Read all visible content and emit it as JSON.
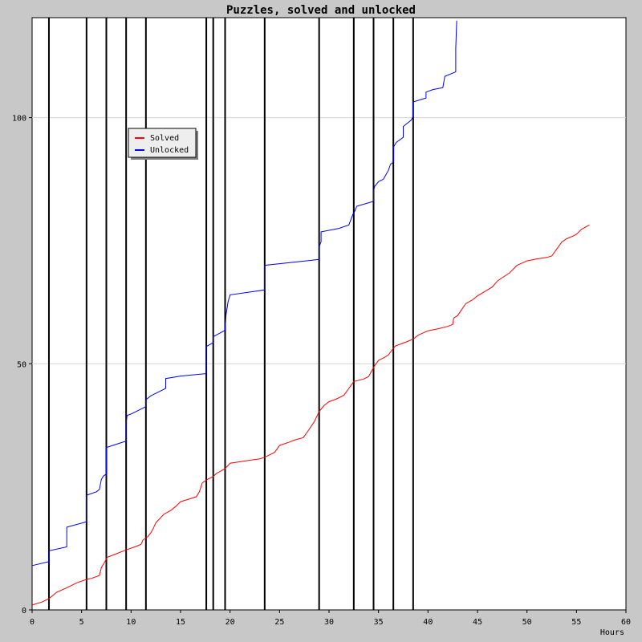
{
  "chart_data": {
    "type": "line",
    "title": "Puzzles, solved and unlocked",
    "xlabel": "Hours",
    "ylabel": "",
    "xlim": [
      0,
      60
    ],
    "ylim": [
      0,
      120
    ],
    "xticks": [
      0,
      5,
      10,
      15,
      20,
      25,
      30,
      35,
      40,
      45,
      50,
      55,
      60
    ],
    "yticks": [
      0,
      50,
      100
    ],
    "grid": "horizontal at y ticks",
    "legend_placement": "upper-left",
    "colors": {
      "Solved": "#ff0000",
      "Unlocked": "#0000ff",
      "background": "#c8c8c8",
      "plot_area": "#ffffff",
      "events": "#000000"
    },
    "event_lines_x": [
      1.7,
      5.5,
      7.5,
      9.5,
      11.5,
      17.6,
      18.3,
      19.5,
      23.5,
      29.0,
      32.5,
      34.5,
      36.5,
      38.5
    ],
    "series": [
      {
        "name": "Solved",
        "points": [
          [
            0,
            1
          ],
          [
            1,
            1.6
          ],
          [
            1.7,
            2.3
          ],
          [
            2.5,
            3.6
          ],
          [
            3.5,
            4.5
          ],
          [
            4.5,
            5.5
          ],
          [
            5.5,
            6.2
          ],
          [
            6,
            6.4
          ],
          [
            6.8,
            7
          ],
          [
            7,
            8.6
          ],
          [
            7.3,
            9.6
          ],
          [
            7.6,
            10.7
          ],
          [
            8.5,
            11.4
          ],
          [
            9.5,
            12.2
          ],
          [
            10.5,
            12.9
          ],
          [
            11,
            13.3
          ],
          [
            11.2,
            14.2
          ],
          [
            11.7,
            14.9
          ],
          [
            12,
            15.7
          ],
          [
            12.2,
            16.4
          ],
          [
            12.5,
            17.7
          ],
          [
            13.3,
            19.4
          ],
          [
            14,
            20.2
          ],
          [
            14.5,
            21
          ],
          [
            15,
            22
          ],
          [
            16,
            22.6
          ],
          [
            16.6,
            23
          ],
          [
            16.9,
            24
          ],
          [
            17.2,
            25.8
          ],
          [
            17.7,
            26.5
          ],
          [
            18.3,
            27.1
          ],
          [
            18.6,
            27.7
          ],
          [
            19.5,
            28.7
          ],
          [
            20,
            29.8
          ],
          [
            21,
            30.1
          ],
          [
            22,
            30.4
          ],
          [
            23,
            30.7
          ],
          [
            23.5,
            31
          ],
          [
            24.5,
            32
          ],
          [
            25,
            33.4
          ],
          [
            26,
            34.1
          ],
          [
            26.5,
            34.5
          ],
          [
            27.4,
            35
          ],
          [
            28,
            36.7
          ],
          [
            28.5,
            38.2
          ],
          [
            29,
            40.3
          ],
          [
            29.5,
            41.5
          ],
          [
            30,
            42.3
          ],
          [
            30.7,
            42.8
          ],
          [
            31.5,
            43.6
          ],
          [
            32,
            45
          ],
          [
            32.5,
            46.4
          ],
          [
            33.5,
            46.9
          ],
          [
            34,
            47.4
          ],
          [
            34.6,
            49.6
          ],
          [
            35,
            50.7
          ],
          [
            35.6,
            51.3
          ],
          [
            36,
            51.8
          ],
          [
            36.4,
            52.9
          ],
          [
            36.7,
            53.6
          ],
          [
            37.5,
            54.2
          ],
          [
            38.5,
            55
          ],
          [
            39,
            55.8
          ],
          [
            40,
            56.7
          ],
          [
            41,
            57.1
          ],
          [
            42,
            57.6
          ],
          [
            42.5,
            58
          ],
          [
            42.6,
            59.3
          ],
          [
            43,
            59.8
          ],
          [
            43.4,
            61
          ],
          [
            43.8,
            62.2
          ],
          [
            44.5,
            63
          ],
          [
            45,
            63.8
          ],
          [
            46,
            65
          ],
          [
            46.5,
            65.6
          ],
          [
            47,
            66.8
          ],
          [
            47.5,
            67.5
          ],
          [
            48.2,
            68.4
          ],
          [
            49,
            70
          ],
          [
            50,
            70.9
          ],
          [
            51,
            71.3
          ],
          [
            52,
            71.6
          ],
          [
            52.5,
            71.9
          ],
          [
            53,
            73.3
          ],
          [
            53.5,
            74.7
          ],
          [
            54,
            75.4
          ],
          [
            54.6,
            75.9
          ],
          [
            55,
            76.3
          ],
          [
            55.5,
            77.3
          ],
          [
            56.3,
            78.2
          ]
        ]
      },
      {
        "name": "Unlocked",
        "points": [
          [
            0,
            9
          ],
          [
            1.7,
            9.8
          ],
          [
            1.7,
            12
          ],
          [
            3.5,
            12.8
          ],
          [
            3.5,
            16.8
          ],
          [
            5.5,
            17.9
          ],
          [
            5.5,
            23.3
          ],
          [
            6.5,
            24
          ],
          [
            6.8,
            24.5
          ],
          [
            7,
            26.5
          ],
          [
            7.2,
            27.2
          ],
          [
            7.5,
            27.6
          ],
          [
            7.5,
            33
          ],
          [
            9.5,
            34.3
          ],
          [
            9.5,
            38
          ],
          [
            9.6,
            39.5
          ],
          [
            10,
            39.8
          ],
          [
            11.5,
            41.3
          ],
          [
            11.5,
            42.7
          ],
          [
            12,
            43.5
          ],
          [
            13.5,
            45
          ],
          [
            13.5,
            47
          ],
          [
            15,
            47.5
          ],
          [
            17.6,
            48
          ],
          [
            17.6,
            53.5
          ],
          [
            18.3,
            54.3
          ],
          [
            18.3,
            55.5
          ],
          [
            19.5,
            56.8
          ],
          [
            19.6,
            60
          ],
          [
            19.8,
            62.6
          ],
          [
            20,
            64
          ],
          [
            23.5,
            65
          ],
          [
            23.5,
            70
          ],
          [
            29.0,
            71.2
          ],
          [
            29.0,
            73.8
          ],
          [
            29.2,
            74.8
          ],
          [
            29.2,
            76.8
          ],
          [
            31,
            77.5
          ],
          [
            32,
            78.2
          ],
          [
            32.4,
            80.3
          ],
          [
            32.6,
            81
          ],
          [
            32.8,
            82
          ],
          [
            34.5,
            83
          ],
          [
            34.5,
            85
          ],
          [
            34.6,
            86
          ],
          [
            35,
            87
          ],
          [
            35.5,
            87.5
          ],
          [
            36,
            89.3
          ],
          [
            36.2,
            90.5
          ],
          [
            36.5,
            91
          ],
          [
            36.5,
            94
          ],
          [
            36.8,
            95
          ],
          [
            37.5,
            96
          ],
          [
            37.5,
            98.2
          ],
          [
            38.3,
            99.5
          ],
          [
            38.5,
            100.3
          ],
          [
            38.5,
            103.2
          ],
          [
            39.8,
            104
          ],
          [
            39.8,
            105.2
          ],
          [
            40.5,
            105.7
          ],
          [
            41.5,
            106.1
          ],
          [
            41.7,
            108.4
          ],
          [
            42.8,
            109.3
          ],
          [
            42.8,
            114
          ],
          [
            42.9,
            119.7
          ]
        ]
      }
    ]
  }
}
